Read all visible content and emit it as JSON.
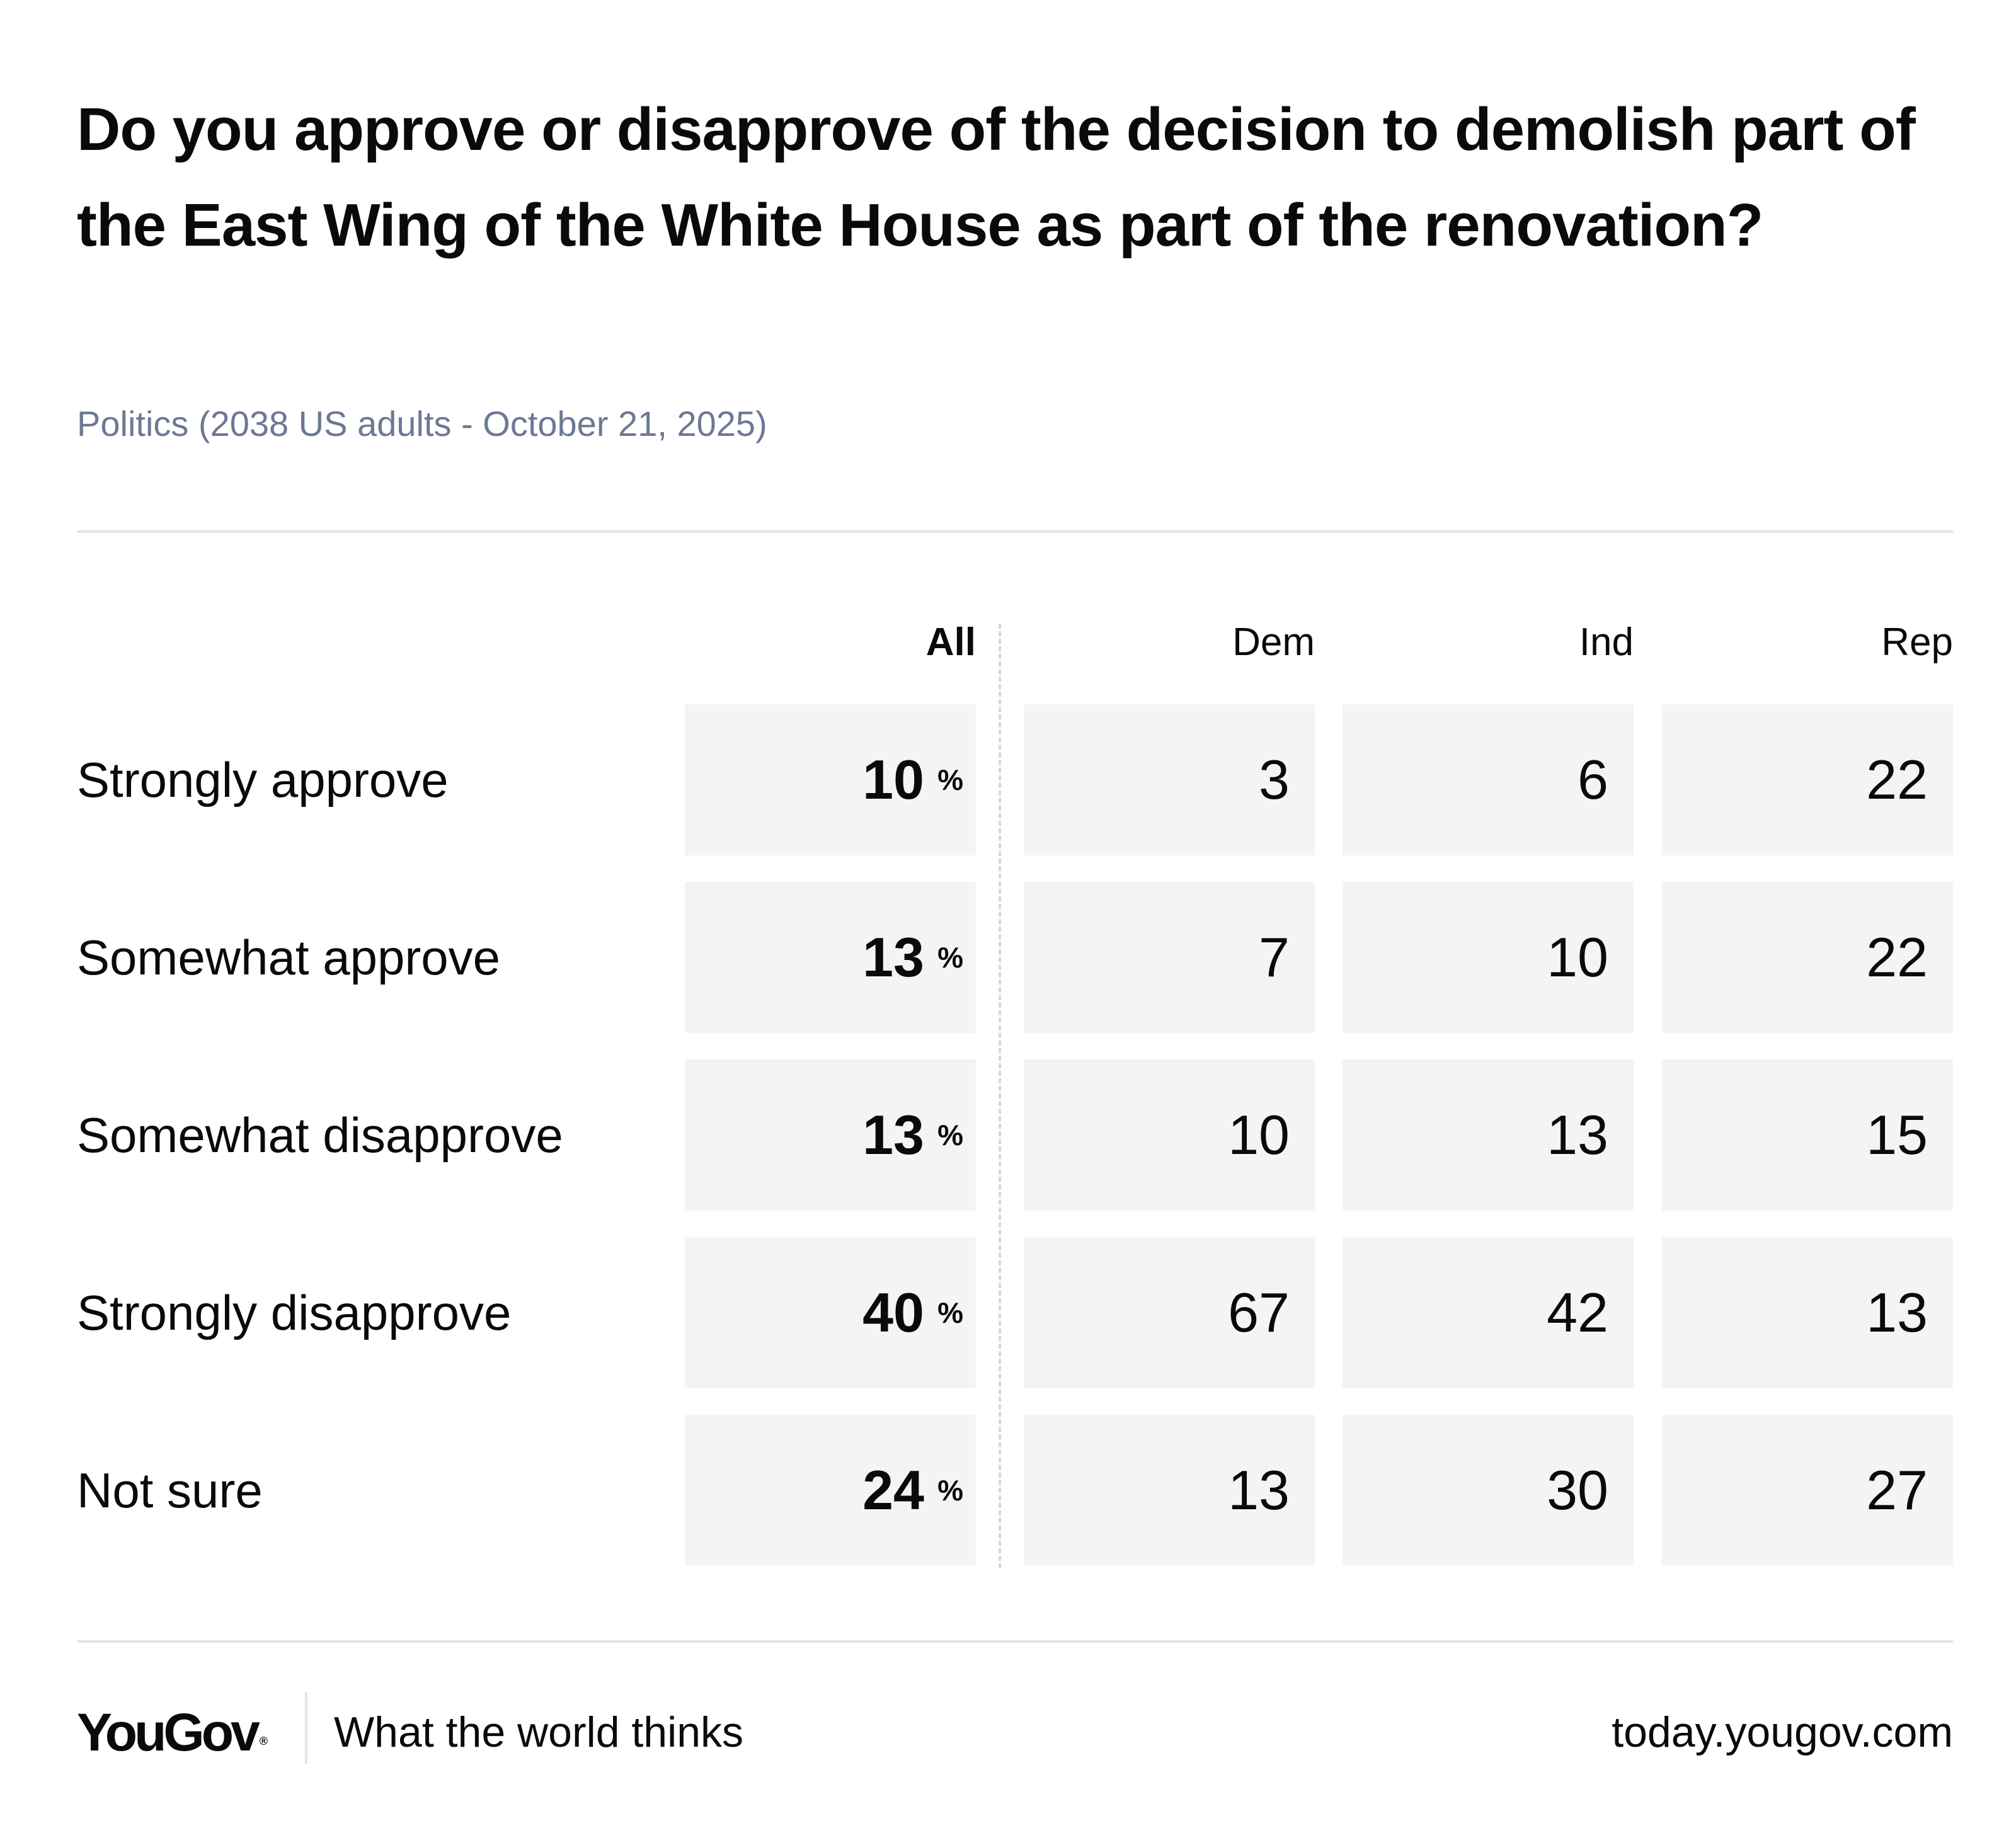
{
  "header": {
    "title": "Do you approve or disapprove of the decision to demolish part of the East Wing of the White House as part of the renovation?",
    "subtitle": "Politics (2038 US adults - October 21, 2025)"
  },
  "chart_data": {
    "type": "table",
    "title": "Do you approve or disapprove of the decision to demolish part of the East Wing of the White House as part of the renovation?",
    "subtitle": "Politics (2038 US adults - October 21, 2025)",
    "columns": [
      "All",
      "Dem",
      "Ind",
      "Rep"
    ],
    "unit_suffix": "%",
    "rows": [
      {
        "label": "Strongly approve",
        "values": [
          10,
          3,
          6,
          22
        ]
      },
      {
        "label": "Somewhat approve",
        "values": [
          13,
          7,
          10,
          22
        ]
      },
      {
        "label": "Somewhat disapprove",
        "values": [
          13,
          10,
          13,
          15
        ]
      },
      {
        "label": "Strongly disapprove",
        "values": [
          40,
          67,
          42,
          13
        ]
      },
      {
        "label": "Not sure",
        "values": [
          24,
          13,
          30,
          27
        ]
      }
    ]
  },
  "footer": {
    "logo": "YouGov",
    "logo_mark": "®",
    "tagline": "What the world thinks",
    "site": "today.yougov.com"
  },
  "colors": {
    "cell_background": "#f3f4f6",
    "rule": "#e3e4ee",
    "subtitle": "#6d7895",
    "text": "#0a0a0a"
  }
}
